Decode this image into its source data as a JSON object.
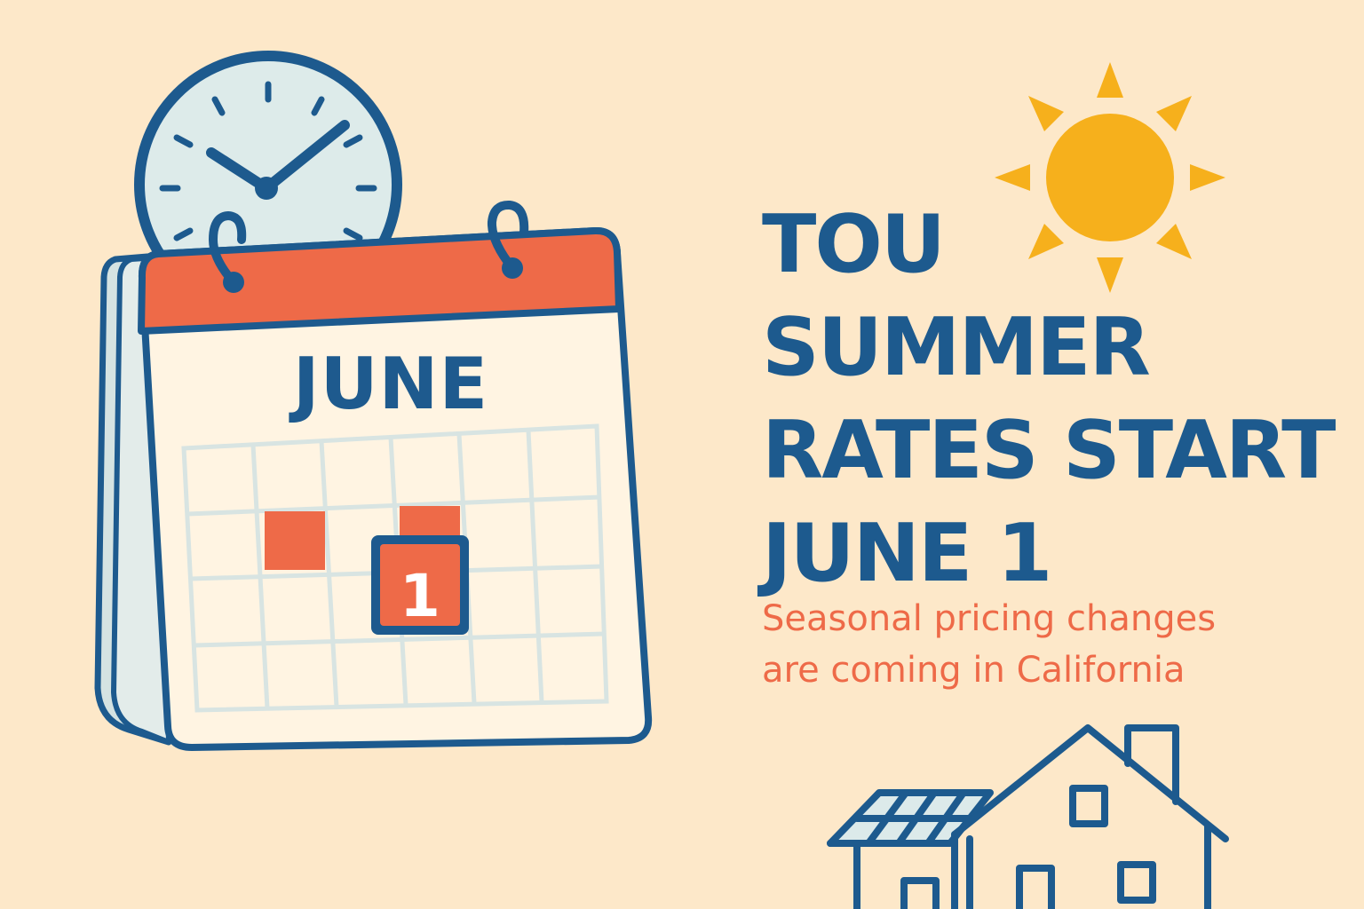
{
  "calendar": {
    "month": "JUNE",
    "day": "1"
  },
  "headline": {
    "lines": [
      "TOU",
      "SUMMER",
      "RATES START",
      "JUNE 1"
    ]
  },
  "subheadline": {
    "lines": [
      "Seasonal pricing changes",
      "are coming in California"
    ]
  },
  "colors": {
    "background": "#FDE8C9",
    "navy": "#1D5A8E",
    "coral": "#EE6A48",
    "sun": "#F6B01C",
    "clock_face": "#DDEBEA",
    "calendar_page": "#FFF4E2"
  }
}
